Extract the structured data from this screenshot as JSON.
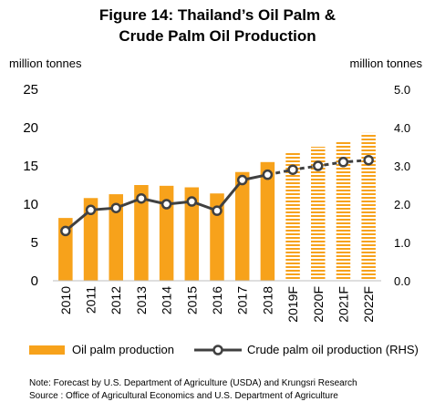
{
  "figure": {
    "title_line1": "Figure 14: Thailand’s Oil Palm &",
    "title_line2": "Crude Palm Oil Production",
    "left_unit": "million tonnes",
    "right_unit": "million tonnes",
    "note": "Note: Forecast by U.S. Department of Agriculture (USDA) and Krungsri Research",
    "source": "Source :  Office of Agricultural Economics and U.S. Department of Agriculture"
  },
  "colors": {
    "bar": "#f7a21b",
    "line": "#404040",
    "marker_fill": "#ffffff",
    "axis": "#bfbfbf"
  },
  "chart_data": {
    "type": "bar",
    "categories": [
      "2010",
      "2011",
      "2012",
      "2013",
      "2014",
      "2015",
      "2016",
      "2017",
      "2018",
      "2019F",
      "2020F",
      "2021F",
      "2022F"
    ],
    "forecast_from_index": 9,
    "series": [
      {
        "name": "Oil palm production",
        "type": "bar",
        "axis": "left",
        "values": [
          8.2,
          10.8,
          11.3,
          12.5,
          12.4,
          12.2,
          11.4,
          14.2,
          15.5,
          16.7,
          17.5,
          18.2,
          19.3
        ]
      },
      {
        "name": "Crude palm oil production (RHS)",
        "type": "line",
        "axis": "right",
        "values": [
          1.3,
          1.85,
          1.9,
          2.15,
          2.0,
          2.07,
          1.83,
          2.63,
          2.77,
          2.9,
          3.0,
          3.1,
          3.15
        ]
      }
    ],
    "y_left": {
      "min": 0,
      "max": 25,
      "ticks": [
        "0",
        "5",
        "10",
        "15",
        "20",
        "25"
      ]
    },
    "y_right": {
      "min": 0,
      "max": 5,
      "ticks": [
        "0.0",
        "1.0",
        "2.0",
        "3.0",
        "4.0",
        "5.0"
      ]
    },
    "grid": false,
    "legend_position": "bottom"
  }
}
